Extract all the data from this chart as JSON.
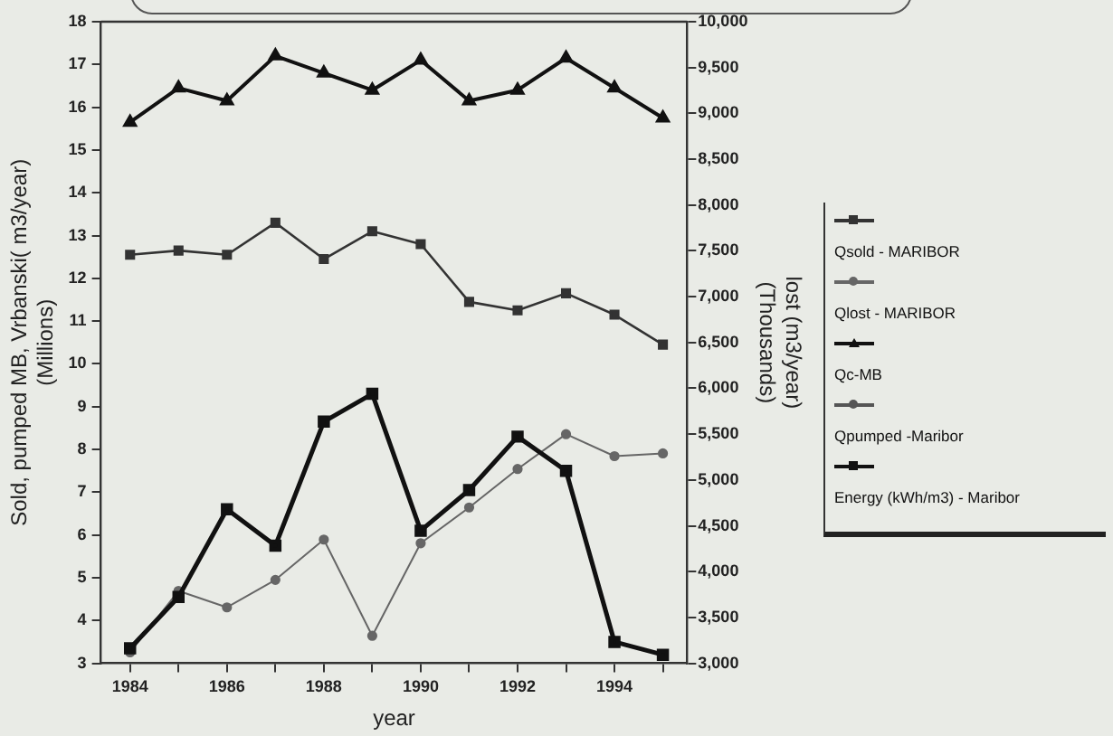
{
  "chart_data": {
    "type": "line",
    "xlabel": "year",
    "ylabel": "Sold, pumped MB, Vrbanski( m3/year)\n(Millions)",
    "y2label": "lost (m3/year)\n(Thousands)",
    "x": [
      1984,
      1985,
      1986,
      1987,
      1988,
      1989,
      1990,
      1991,
      1992,
      1993,
      1994,
      1995
    ],
    "series": [
      {
        "name": "Qsold - MARIBOR",
        "color": "#333333",
        "marker": "square",
        "values": [
          12.55,
          12.65,
          12.55,
          13.3,
          12.45,
          13.1,
          12.8,
          11.45,
          11.25,
          11.65,
          11.15,
          10.45
        ]
      },
      {
        "name": "Qlost - MARIBOR",
        "color": "#666666",
        "marker": "circle",
        "axis": "y2",
        "values": [
          3120,
          3790,
          3610,
          3910,
          4350,
          3300,
          4310,
          4700,
          5120,
          5500,
          5260,
          5290
        ]
      },
      {
        "name": "Qc-MB",
        "color": "#111111",
        "marker": "triangle",
        "values": [
          15.65,
          16.45,
          16.15,
          17.2,
          16.8,
          16.4,
          17.1,
          16.15,
          16.4,
          17.15,
          16.45,
          15.75
        ]
      },
      {
        "name": "Qpumped -Maribor",
        "color": "#555555",
        "marker": "circle",
        "values": [
          null,
          null,
          null,
          null,
          null,
          null,
          null,
          null,
          null,
          null,
          null,
          null
        ]
      },
      {
        "name": "Energy (kWh/m3) - Maribor",
        "color": "#111111",
        "marker": "square",
        "values": [
          3.35,
          4.55,
          6.6,
          5.75,
          8.65,
          9.3,
          6.1,
          7.05,
          8.3,
          7.5,
          3.5,
          3.2
        ]
      }
    ],
    "xlim": [
      1983.4,
      1995.5
    ],
    "xticks": [
      1984,
      {
        "value": 1985,
        "label": null
      },
      1986,
      {
        "value": 1987,
        "label": null
      },
      1988,
      {
        "value": 1989,
        "label": null
      },
      1990,
      {
        "value": 1991,
        "label": null
      },
      1992,
      {
        "value": 1993,
        "label": null
      },
      1994,
      {
        "value": 1995,
        "label": null
      }
    ],
    "ylim": [
      3,
      18
    ],
    "yticks": [
      3,
      4,
      5,
      6,
      7,
      8,
      9,
      10,
      11,
      12,
      13,
      14,
      15,
      16,
      17,
      18
    ],
    "y2lim": [
      3000,
      10000
    ],
    "y2ticks": [
      {
        "value": 3000,
        "label": "3,000"
      },
      {
        "value": 3500,
        "label": "3,500"
      },
      {
        "value": 4000,
        "label": "4,000"
      },
      {
        "value": 4500,
        "label": "4,500"
      },
      {
        "value": 5000,
        "label": "5,000"
      },
      {
        "value": 5500,
        "label": "5,500"
      },
      {
        "value": 6000,
        "label": "6,000"
      },
      {
        "value": 6500,
        "label": "6,500"
      },
      {
        "value": 7000,
        "label": "7,000"
      },
      {
        "value": 7500,
        "label": "7,500"
      },
      {
        "value": 8000,
        "label": "8,000"
      },
      {
        "value": 8500,
        "label": "8,500"
      },
      {
        "value": 9000,
        "label": "9,000"
      },
      {
        "value": 9500,
        "label": "9,500"
      },
      {
        "value": 10000,
        "label": "10,000"
      }
    ],
    "grid": false,
    "legend": "right"
  }
}
